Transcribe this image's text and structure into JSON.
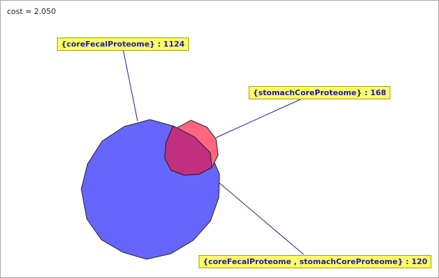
{
  "cost_text": "cost = 2.050",
  "sets": [
    {
      "name": "coreFecalProteome",
      "label": "{coreFecalProteome} : 1124",
      "count": 1124,
      "color": "#6666ff"
    },
    {
      "name": "stomachCoreProteome",
      "label": "{stomachCoreProteome} : 168",
      "count": 168,
      "color": "#ff6680"
    }
  ],
  "intersections": [
    {
      "sets": [
        "coreFecalProteome",
        "stomachCoreProteome"
      ],
      "label": "{coreFecalProteome , stomachCoreProteome} : 120",
      "count": 120,
      "color": "#c0307f"
    }
  ],
  "line_color": "#1c1c99",
  "label_bg": "#ffff66"
}
